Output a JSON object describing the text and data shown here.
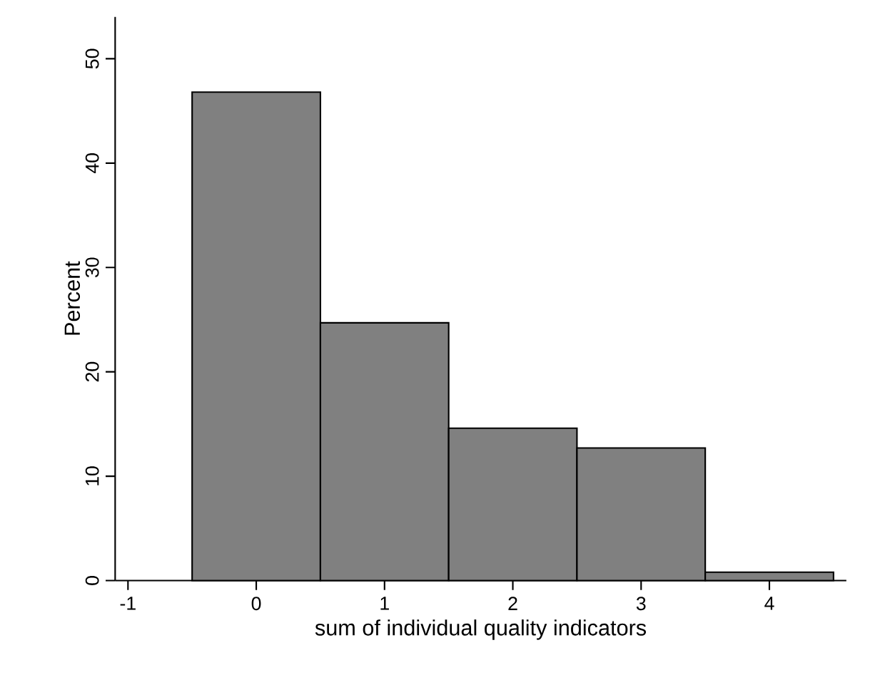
{
  "chart_data": {
    "type": "histogram",
    "xlabel": "sum of individual quality indicators",
    "ylabel": "Percent",
    "bins": [
      -0.5,
      0.5,
      1.5,
      2.5,
      3.5,
      4.5
    ],
    "values": [
      46.8,
      24.7,
      14.6,
      12.7,
      0.8
    ],
    "color": "#808080",
    "xlim": [
      -1.1,
      4.6
    ],
    "xticks": [
      -1,
      0,
      1,
      2,
      3,
      4
    ],
    "ylim": [
      0,
      54
    ],
    "yticks": [
      0,
      10,
      20,
      30,
      40,
      50
    ],
    "grid": false
  }
}
